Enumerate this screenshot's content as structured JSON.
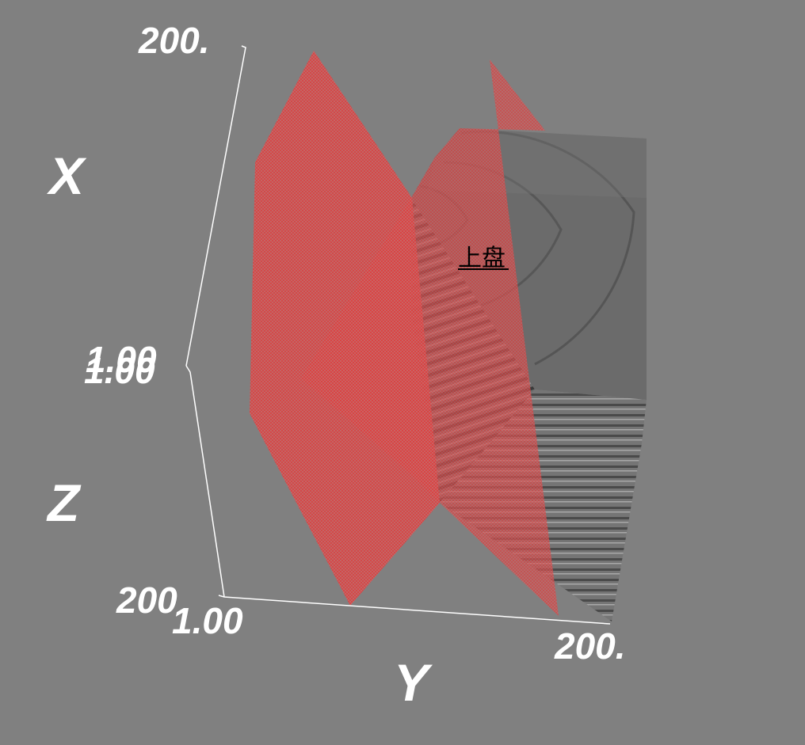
{
  "axes": {
    "x": {
      "name": "X",
      "tick_max": "200.",
      "tick_min": "1.00"
    },
    "z": {
      "name": "Z",
      "tick_max": "200",
      "tick_min": "1.00"
    },
    "y": {
      "name": "Y",
      "tick_max": "200.",
      "tick_min": "1.00"
    }
  },
  "annotation": {
    "text": "上盘"
  },
  "colors": {
    "background": "#808080",
    "fault_plane": "#d94a4a",
    "block_face": "#6b6b6b",
    "axis_line": "#ffffff"
  }
}
